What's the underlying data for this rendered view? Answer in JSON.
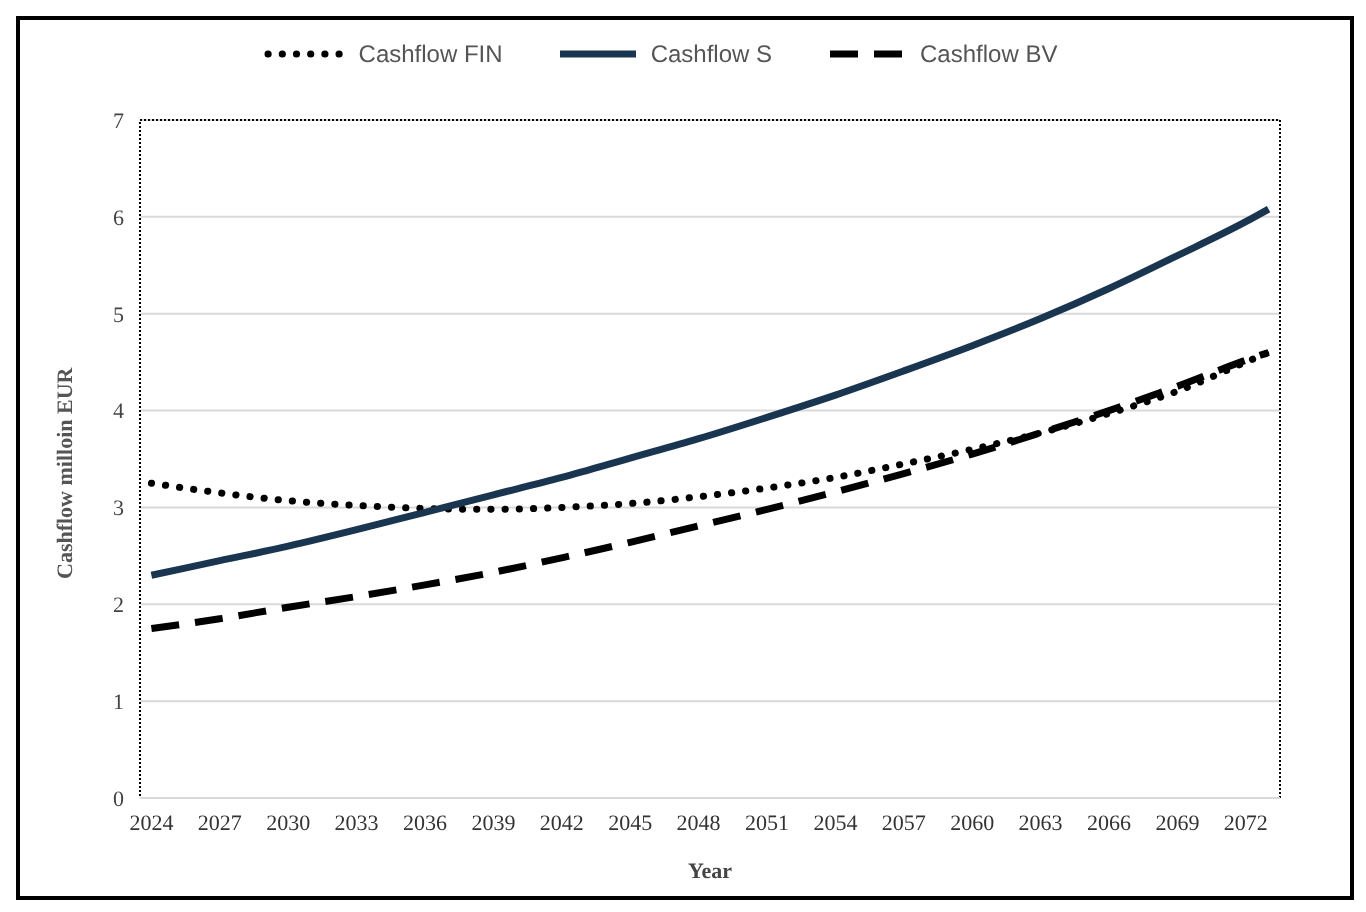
{
  "chart_data": {
    "type": "line",
    "xlabel": "Year",
    "ylabel": "Cashflow milloin EUR",
    "x": [
      2024,
      2027,
      2030,
      2033,
      2036,
      2039,
      2042,
      2045,
      2048,
      2051,
      2054,
      2057,
      2060,
      2063,
      2066,
      2069,
      2072,
      2073
    ],
    "series": [
      {
        "name": "Cashflow FIN",
        "color": "#000000",
        "line_style": "dotted",
        "values": [
          3.25,
          3.15,
          3.07,
          3.02,
          2.99,
          2.98,
          3.0,
          3.04,
          3.11,
          3.2,
          3.31,
          3.45,
          3.6,
          3.77,
          3.97,
          4.2,
          4.5,
          4.6
        ]
      },
      {
        "name": "Cashflow S",
        "color": "#1a3550",
        "line_style": "solid",
        "values": [
          2.3,
          2.45,
          2.6,
          2.77,
          2.95,
          3.13,
          3.31,
          3.51,
          3.71,
          3.93,
          4.16,
          4.41,
          4.67,
          4.95,
          5.26,
          5.6,
          5.95,
          6.08
        ]
      },
      {
        "name": "Cashflow BV",
        "color": "#000000",
        "line_style": "dashed",
        "values": [
          1.75,
          1.85,
          1.97,
          2.08,
          2.2,
          2.33,
          2.48,
          2.64,
          2.81,
          2.98,
          3.16,
          3.35,
          3.55,
          3.77,
          4.0,
          4.25,
          4.52,
          4.6
        ]
      }
    ],
    "xlim": [
      2023.5,
      2073.5
    ],
    "xticks": [
      2024,
      2027,
      2030,
      2033,
      2036,
      2039,
      2042,
      2045,
      2048,
      2051,
      2054,
      2057,
      2060,
      2063,
      2066,
      2069,
      2072
    ],
    "ylim": [
      0,
      7
    ],
    "yticks": [
      0,
      1,
      2,
      3,
      4,
      5,
      6,
      7
    ],
    "grid": "y",
    "legend": "top",
    "marker": "none"
  }
}
